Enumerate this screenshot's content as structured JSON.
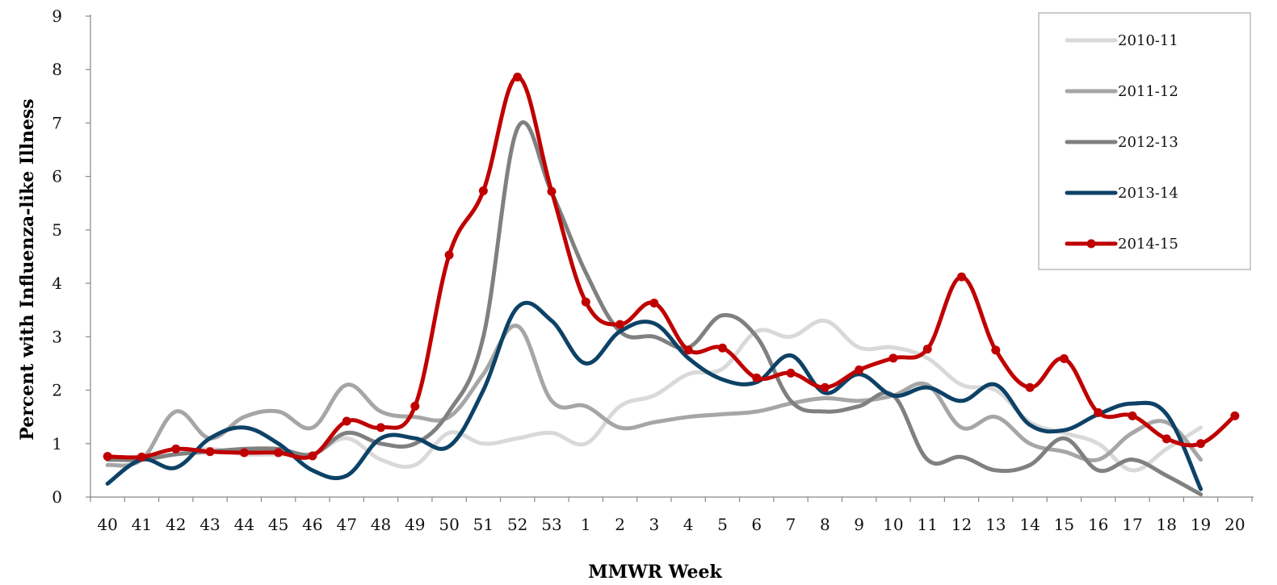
{
  "chart_data": {
    "type": "line",
    "title": "",
    "xlabel": "MMWR Week",
    "ylabel": "Percent with Influenza-like Illness",
    "ylim": [
      0,
      9
    ],
    "yticks": [
      0,
      1,
      2,
      3,
      4,
      5,
      6,
      7,
      8,
      9
    ],
    "categories": [
      "40",
      "41",
      "42",
      "43",
      "44",
      "45",
      "46",
      "47",
      "48",
      "49",
      "50",
      "51",
      "52",
      "53",
      "1",
      "2",
      "3",
      "4",
      "5",
      "6",
      "7",
      "8",
      "9",
      "10",
      "11",
      "12",
      "13",
      "14",
      "15",
      "16",
      "17",
      "18",
      "19",
      "20"
    ],
    "grid": false,
    "legend_position": "top-right",
    "series": [
      {
        "name": "2010-11",
        "color": "#d9d9d9",
        "markers": false,
        "values": [
          0.7,
          0.7,
          0.8,
          0.9,
          0.8,
          0.8,
          0.8,
          1.1,
          0.7,
          0.6,
          1.2,
          1.0,
          1.1,
          1.2,
          1.0,
          1.7,
          1.9,
          2.3,
          2.4,
          3.1,
          3.0,
          3.3,
          2.8,
          2.8,
          2.6,
          2.1,
          2.0,
          1.4,
          1.2,
          1.0,
          0.5,
          0.9,
          1.3,
          null
        ]
      },
      {
        "name": "2011-12",
        "color": "#a6a6a6",
        "markers": false,
        "values": [
          0.6,
          0.7,
          1.6,
          1.1,
          1.5,
          1.6,
          1.3,
          2.1,
          1.6,
          1.5,
          1.5,
          2.3,
          3.2,
          1.8,
          1.7,
          1.3,
          1.4,
          1.5,
          1.55,
          1.6,
          1.75,
          1.85,
          1.8,
          1.9,
          2.1,
          1.3,
          1.5,
          1.0,
          0.85,
          0.7,
          1.2,
          1.4,
          0.7,
          null
        ]
      },
      {
        "name": "2012-13",
        "color": "#808080",
        "markers": false,
        "values": [
          0.7,
          0.7,
          0.8,
          0.85,
          0.9,
          0.9,
          0.8,
          1.2,
          1.0,
          1.0,
          1.6,
          3.0,
          6.9,
          5.7,
          4.2,
          3.1,
          3.0,
          2.8,
          3.4,
          3.0,
          1.8,
          1.6,
          1.7,
          1.9,
          0.7,
          0.75,
          0.5,
          0.6,
          1.1,
          0.5,
          0.7,
          0.4,
          0.05,
          null
        ]
      },
      {
        "name": "2013-14",
        "color": "#0d4266",
        "markers": false,
        "values": [
          0.25,
          0.7,
          0.55,
          1.1,
          1.3,
          1.0,
          0.5,
          0.4,
          1.1,
          1.1,
          0.95,
          2.0,
          3.55,
          3.3,
          2.5,
          3.1,
          3.25,
          2.6,
          2.2,
          2.15,
          2.65,
          1.95,
          2.3,
          1.9,
          2.05,
          1.8,
          2.1,
          1.35,
          1.25,
          1.55,
          1.75,
          1.55,
          0.15,
          null
        ]
      },
      {
        "name": "2014-15",
        "color": "#c00000",
        "markers": true,
        "values": [
          0.76,
          0.75,
          0.9,
          0.85,
          0.83,
          0.83,
          0.77,
          1.42,
          1.3,
          1.7,
          4.53,
          5.73,
          7.86,
          5.72,
          3.65,
          3.23,
          3.63,
          2.75,
          2.79,
          2.23,
          2.32,
          2.05,
          2.38,
          2.6,
          2.77,
          4.12,
          2.75,
          2.05,
          2.59,
          1.58,
          1.52,
          1.09,
          1.0,
          1.52
        ]
      }
    ]
  }
}
